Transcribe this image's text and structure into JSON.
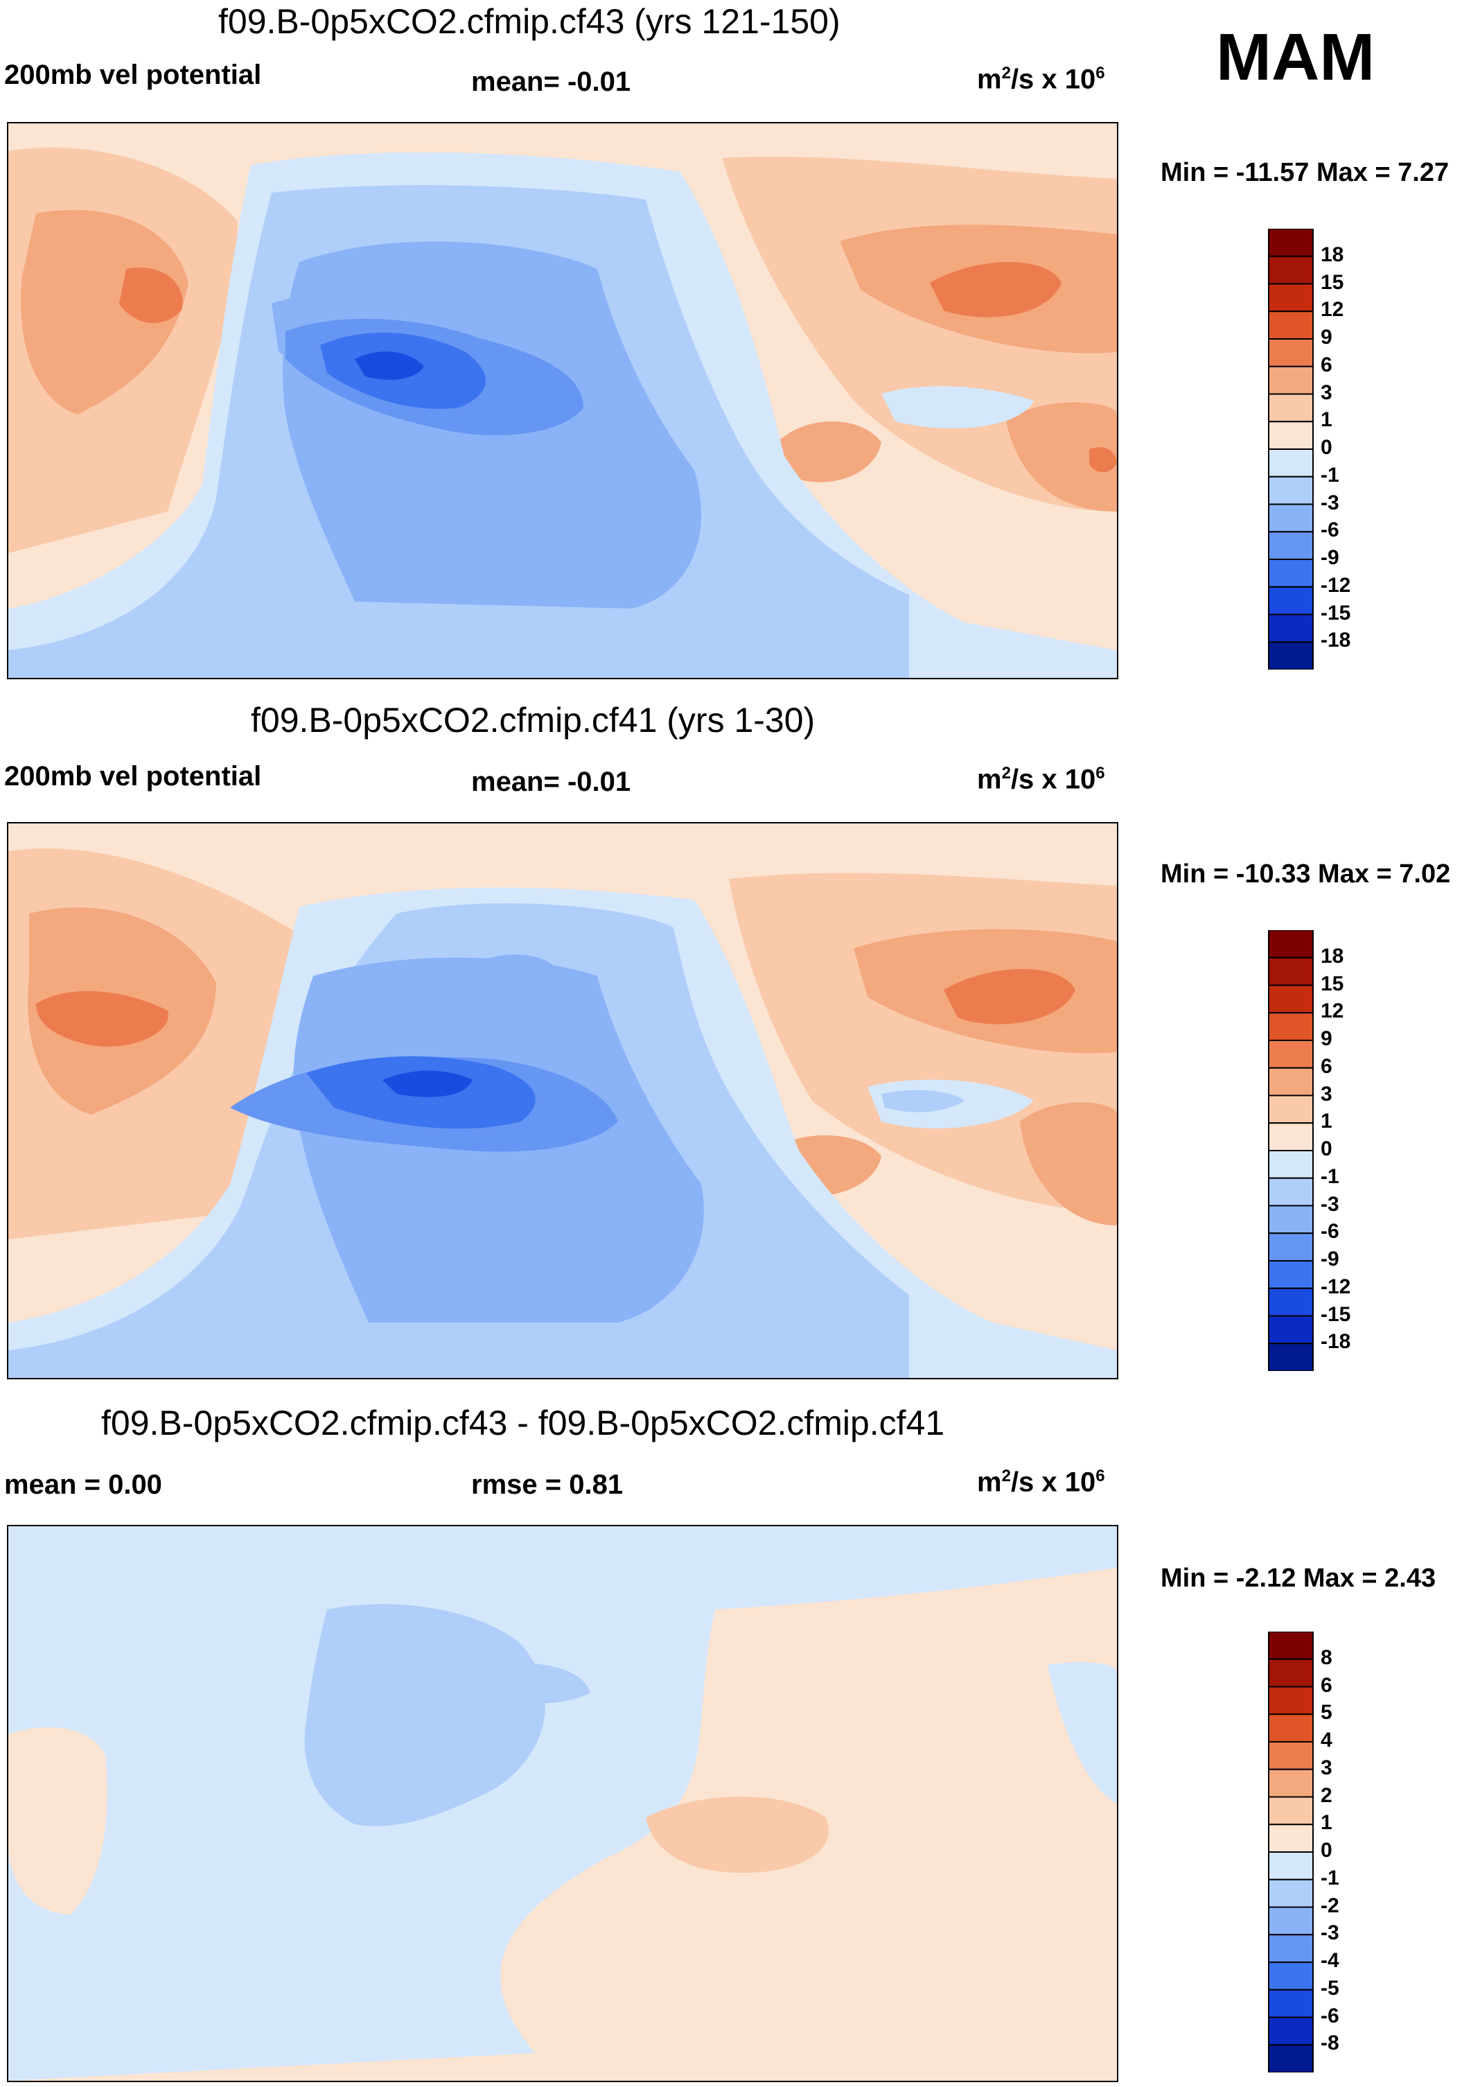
{
  "season": "MAM",
  "units_base": "m",
  "units_sup1": "2",
  "units_mid": "/s x 10",
  "units_sup2": "6",
  "colors": {
    "pos": [
      "#fbe4d2",
      "#f9c9aa",
      "#f4a87e",
      "#ec7c4e",
      "#e15628",
      "#c52c0d",
      "#a21507",
      "#7d0000"
    ],
    "neg": [
      "#d5e7fb",
      "#b0cefa",
      "#8ab2f7",
      "#6696f3",
      "#3c73ee",
      "#1a4be1",
      "#0a2bc2",
      "#001a90"
    ],
    "map_bg": "#e9f2fd"
  },
  "panels": [
    {
      "title": "f09.B-0p5xCO2.cfmip.cf43 (yrs 121-150)",
      "left_label": "200mb vel potential",
      "mid_label": "mean=  -0.01",
      "min_max": "Min = -11.57 Max =   7.27"
    },
    {
      "title": "f09.B-0p5xCO2.cfmip.cf41 (yrs 1-30)",
      "left_label": "200mb vel potential",
      "mid_label": "mean=  -0.01",
      "min_max": "Min = -10.33 Max =   7.02"
    },
    {
      "title": "f09.B-0p5xCO2.cfmip.cf43 - f09.B-0p5xCO2.cfmip.cf41",
      "left_label": "mean =   0.00",
      "mid_label": "rmse =   0.81",
      "min_max": "Min =  -2.12 Max =   2.43"
    }
  ],
  "chart_data": [
    {
      "type": "heatmap",
      "title": "f09.B-0p5xCO2.cfmip.cf43 (yrs 121-150)",
      "variable": "200mb vel potential",
      "units": "m^2/s x 10^6",
      "mean": -0.01,
      "min": -11.57,
      "max": 7.27,
      "colorbar_levels": [
        "18",
        "15",
        "12",
        "9",
        "6",
        "3",
        "1",
        "0",
        "-1",
        "-3",
        "-6",
        "-9",
        "-12",
        "-15",
        "-18"
      ]
    },
    {
      "type": "heatmap",
      "title": "f09.B-0p5xCO2.cfmip.cf41 (yrs 1-30)",
      "variable": "200mb vel potential",
      "units": "m^2/s x 10^6",
      "mean": -0.01,
      "min": -10.33,
      "max": 7.02,
      "colorbar_levels": [
        "18",
        "15",
        "12",
        "9",
        "6",
        "3",
        "1",
        "0",
        "-1",
        "-3",
        "-6",
        "-9",
        "-12",
        "-15",
        "-18"
      ]
    },
    {
      "type": "heatmap",
      "title": "f09.B-0p5xCO2.cfmip.cf43 - f09.B-0p5xCO2.cfmip.cf41",
      "units": "m^2/s x 10^6",
      "mean": 0.0,
      "rmse": 0.81,
      "min": -2.12,
      "max": 2.43,
      "colorbar_levels": [
        "8",
        "6",
        "5",
        "4",
        "3",
        "2",
        "1",
        "0",
        "-1",
        "-2",
        "-3",
        "-4",
        "-5",
        "-6",
        "-8"
      ]
    }
  ]
}
